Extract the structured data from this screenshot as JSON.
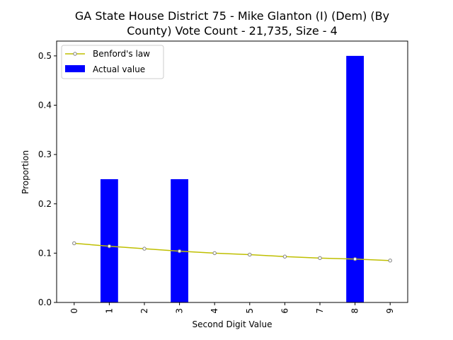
{
  "chart_data": {
    "type": "bar",
    "title_lines": [
      "GA State House District 75 - Mike Glanton (I) (Dem) (By",
      "County) Vote Count - 21,735, Size - 4"
    ],
    "xlabel": "Second Digit Value",
    "ylabel": "Proportion",
    "categories": [
      "0",
      "1",
      "2",
      "3",
      "4",
      "5",
      "6",
      "7",
      "8",
      "9"
    ],
    "x": [
      0,
      1,
      2,
      3,
      4,
      5,
      6,
      7,
      8,
      9
    ],
    "ylim": [
      0,
      0.53
    ],
    "yticks": [
      0.0,
      0.1,
      0.2,
      0.3,
      0.4,
      0.5
    ],
    "ytick_labels": [
      "0.0",
      "0.1",
      "0.2",
      "0.3",
      "0.4",
      "0.5"
    ],
    "series": [
      {
        "name": "Benford's law",
        "kind": "line",
        "color": "#bfbf00",
        "marker_color": "#808080",
        "values": [
          0.12,
          0.114,
          0.109,
          0.104,
          0.1,
          0.097,
          0.093,
          0.09,
          0.088,
          0.085
        ]
      },
      {
        "name": "Actual value",
        "kind": "bar",
        "color": "#0000ff",
        "values": [
          0,
          0.25,
          0,
          0.25,
          0,
          0,
          0,
          0,
          0.5,
          0
        ]
      }
    ],
    "legend_position": "upper-left",
    "grid": false
  }
}
